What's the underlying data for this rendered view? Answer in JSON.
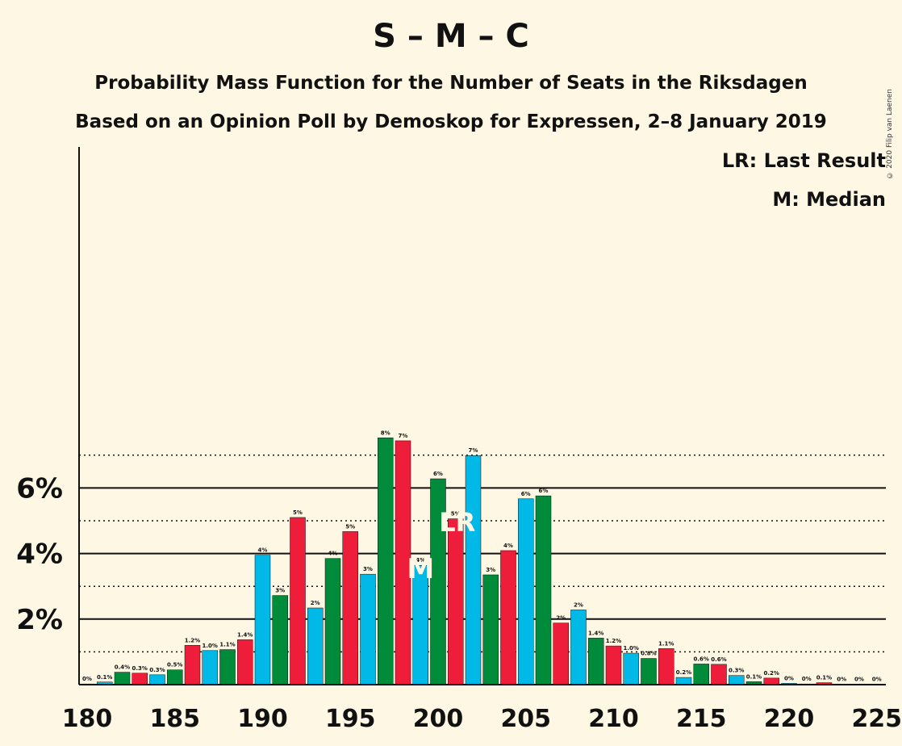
{
  "header": {
    "title": "S – M – C",
    "subtitle1": "Probability Mass Function for the Number of Seats in the Riksdagen",
    "subtitle2": "Based on an Opinion Poll by Demoskop for Expressen, 2–8 January 2019"
  },
  "legend": {
    "lr": "LR: Last Result",
    "m": "M: Median"
  },
  "copyright": "© 2020 Filip van Laenen",
  "colors": {
    "background": "#fdf7e4",
    "red": "#ee1e3a",
    "green": "#008b3b",
    "blue": "#00b9e6",
    "marker_text": "#fdf7e4"
  },
  "chart_data": {
    "type": "bar",
    "x": [
      180,
      181,
      182,
      183,
      184,
      185,
      186,
      187,
      188,
      189,
      190,
      191,
      192,
      193,
      194,
      195,
      196,
      197,
      198,
      199,
      200,
      201,
      202,
      203,
      204,
      205,
      206,
      207,
      208,
      209,
      210,
      211,
      212,
      213,
      214,
      215,
      216,
      217,
      218,
      219,
      220,
      221,
      222,
      223,
      224,
      225
    ],
    "values": [
      0.02,
      0.08,
      0.38,
      0.35,
      0.3,
      0.45,
      1.2,
      1.04,
      1.07,
      1.37,
      3.95,
      2.72,
      5.1,
      2.34,
      3.85,
      4.67,
      3.37,
      7.53,
      7.44,
      3.64,
      6.28,
      5.06,
      6.99,
      3.35,
      4.09,
      5.67,
      5.76,
      1.88,
      2.28,
      1.42,
      1.18,
      0.96,
      0.8,
      1.1,
      0.22,
      0.63,
      0.62,
      0.28,
      0.09,
      0.2,
      0.04,
      0.02,
      0.06,
      0.01,
      0.01,
      0.01
    ],
    "labels": [
      "0%",
      "0.1%",
      "0.4%",
      "0.3%",
      "0.3%",
      "0.5%",
      "1.2%",
      "1.0%",
      "1.1%",
      "1.4%",
      "4%",
      "3%",
      "5%",
      "2%",
      "4%",
      "5%",
      "3%",
      "8%",
      "7%",
      "4%",
      "6%",
      "5%",
      "7%",
      "3%",
      "4%",
      "6%",
      "6%",
      "2%",
      "2%",
      "1.4%",
      "1.2%",
      "1.0%",
      "0.8%",
      "1.1%",
      "0.2%",
      "0.6%",
      "0.6%",
      "0.3%",
      "0.1%",
      "0.2%",
      "0%",
      "0%",
      "0.1%",
      "0%",
      "0%",
      "0%"
    ],
    "colors": [
      "red",
      "blue",
      "green",
      "red",
      "blue",
      "green",
      "red",
      "blue",
      "green",
      "red",
      "blue",
      "green",
      "red",
      "blue",
      "green",
      "red",
      "blue",
      "green",
      "red",
      "blue",
      "green",
      "red",
      "blue",
      "green",
      "red",
      "blue",
      "green",
      "red",
      "blue",
      "green",
      "red",
      "blue",
      "green",
      "red",
      "blue",
      "green",
      "red",
      "blue",
      "green",
      "red",
      "blue",
      "green",
      "red",
      "blue",
      "green",
      "red"
    ],
    "xticks": [
      180,
      185,
      190,
      195,
      200,
      205,
      210,
      215,
      220,
      225
    ],
    "xtick_labels": [
      "180",
      "185",
      "190",
      "195",
      "200",
      "205",
      "210",
      "215",
      "220",
      "225"
    ],
    "yticks": [
      2,
      4,
      6
    ],
    "ytick_labels": [
      "2%",
      "4%",
      "6%"
    ],
    "ylim": [
      0,
      8.2
    ],
    "dotted_gridlines": [
      1,
      3,
      5,
      7
    ],
    "solid_gridlines": [
      2,
      4,
      6
    ],
    "median": {
      "x": 199,
      "label": "M"
    },
    "last_result": {
      "x": 201,
      "label": "LR"
    }
  }
}
